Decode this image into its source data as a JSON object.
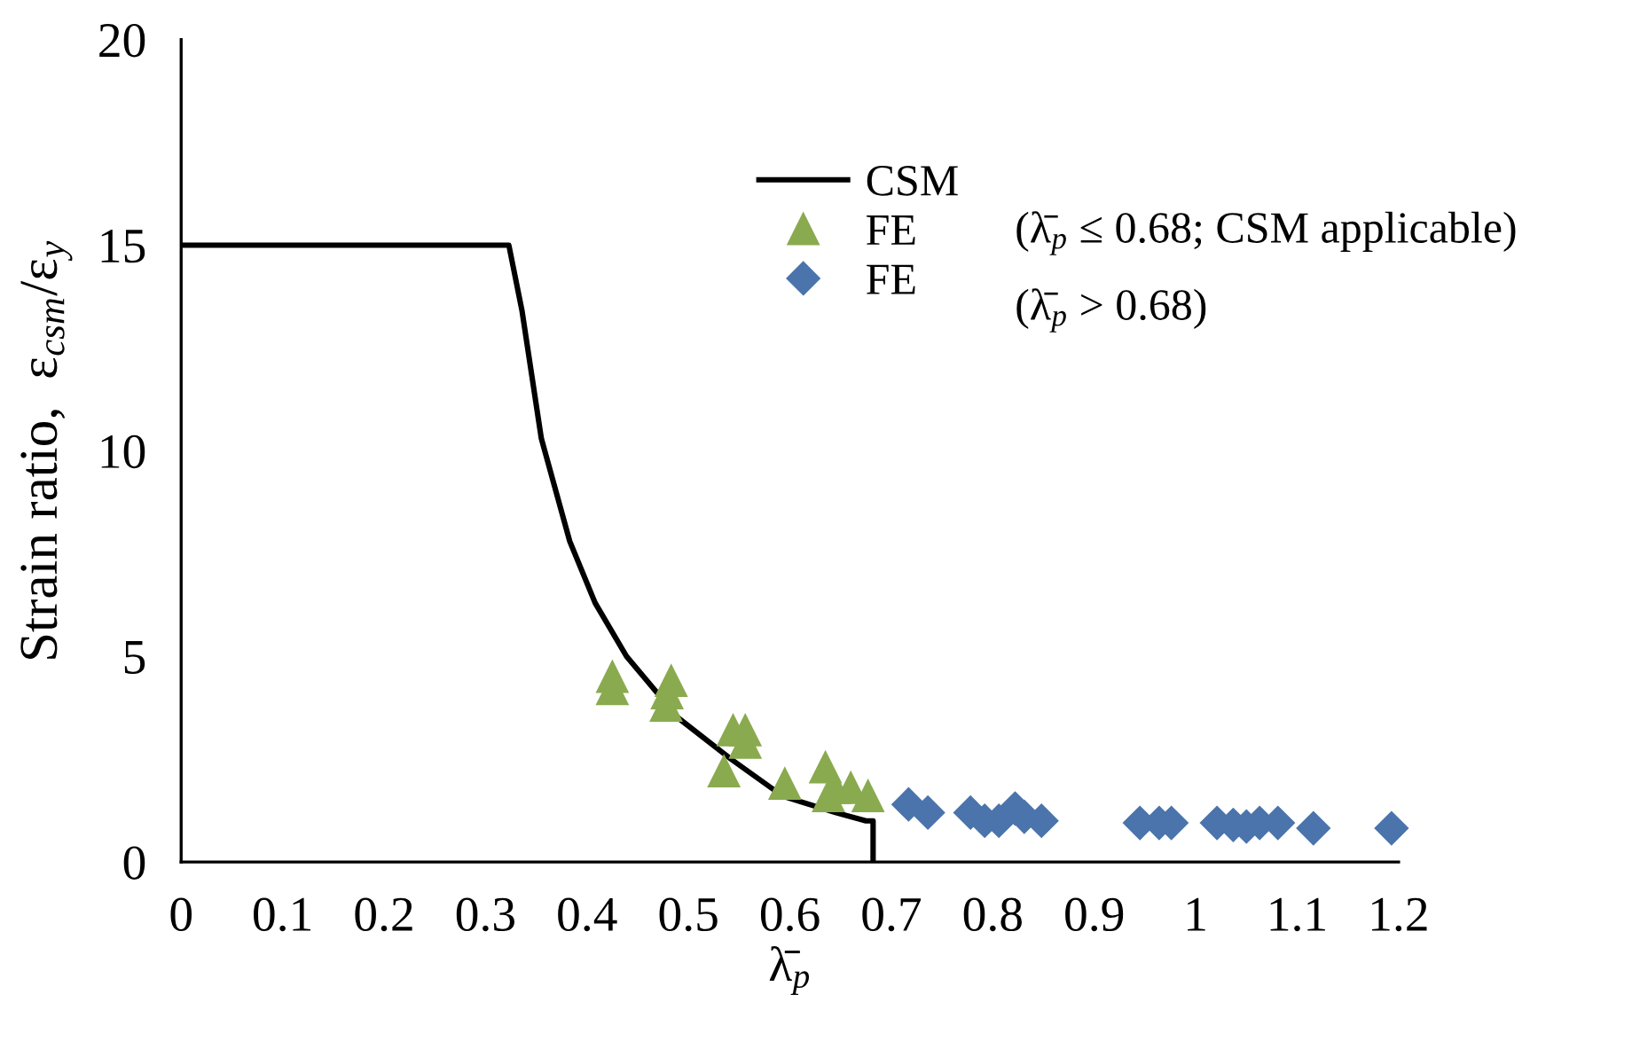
{
  "chart_data": {
    "type": "scatter",
    "xlabel": "λ̄$_{p}$",
    "ylabel": "Strain ratio,  ε$_{csm}$/ε$_{y}$",
    "xlim": [
      0,
      1.2
    ],
    "ylim": [
      0,
      20
    ],
    "xticks": [
      0,
      0.1,
      0.2,
      0.3,
      0.4,
      0.5,
      0.6,
      0.7,
      0.8,
      0.9,
      1,
      1.1,
      1.2
    ],
    "yticks": [
      0,
      5,
      10,
      15,
      20
    ],
    "grid": false,
    "legend": "top right",
    "series": [
      {
        "name": "CSM",
        "type": "line",
        "color": "#000000",
        "marker": "none",
        "line_style": "solid",
        "x": [
          0,
          0.323,
          0.336,
          0.355,
          0.383,
          0.408,
          0.439,
          0.49,
          0.542,
          0.593,
          0.645,
          0.675,
          0.682,
          0.682
        ],
        "values": [
          15.0,
          15.0,
          13.4,
          10.3,
          7.8,
          6.3,
          5.0,
          3.5,
          2.5,
          1.6,
          1.2,
          1.0,
          1.0,
          0
        ]
      },
      {
        "name": "FE",
        "color": "#8aaa4f",
        "marker": "triangle",
        "x": [
          0.425,
          0.425,
          0.483,
          0.479,
          0.478,
          0.544,
          0.556,
          0.556,
          0.535,
          0.595,
          0.635,
          0.638,
          0.644,
          0.66,
          0.677
        ],
        "values": [
          4.5,
          4.2,
          4.4,
          4.1,
          3.8,
          3.2,
          3.2,
          2.9,
          2.2,
          1.9,
          2.3,
          1.6,
          1.8,
          1.8,
          1.6
        ]
      },
      {
        "name": "FE",
        "color": "#4a74ab",
        "marker": "diamond",
        "x": [
          0.717,
          0.736,
          0.778,
          0.792,
          0.806,
          0.822,
          0.831,
          0.848,
          0.945,
          0.964,
          0.976,
          1.021,
          1.037,
          1.05,
          1.063,
          1.081,
          1.116,
          1.193
        ],
        "values": [
          1.4,
          1.2,
          1.2,
          1.0,
          1.0,
          1.3,
          1.1,
          1.0,
          0.95,
          0.95,
          0.95,
          0.95,
          0.9,
          0.86,
          0.95,
          0.95,
          0.82,
          0.82
        ]
      }
    ],
    "annotations": [
      "(λ̄$_{p}$ ≤ 0.68; CSM applicable)",
      "(λ̄$_{p}$ > 0.68)"
    ]
  }
}
